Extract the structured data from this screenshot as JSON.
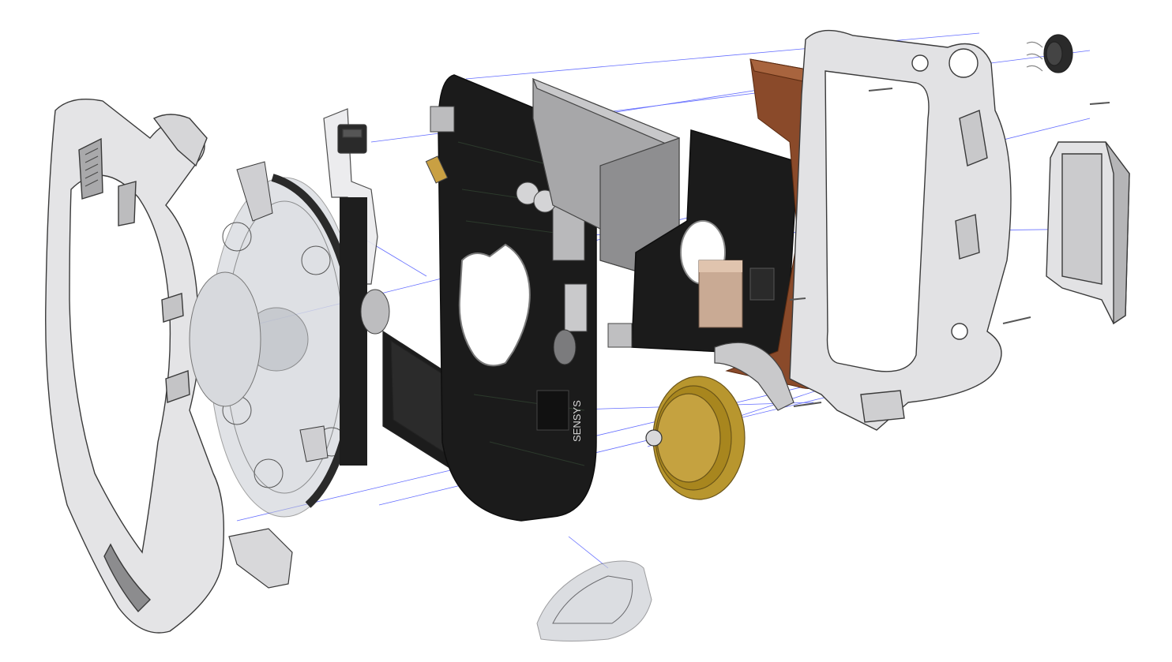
{
  "diagram": {
    "type": "exploded-assembly",
    "background": "#ffffff",
    "colors": {
      "assembly_line": "#2f3cff",
      "housing_fill": "#e4e4e6",
      "housing_edge": "#3a3a3a",
      "pcb": "#1b1b1b",
      "pcb_trace": "#2c3a2c",
      "battery": "#9a9a9a",
      "copper_foil": "#8a4a2a",
      "brass_wheel": "#b8962e",
      "transparent_part": "#c8ccd2"
    },
    "pcb_silkscreen": "SENSYS"
  },
  "parts": [
    {
      "name": "front-bezel",
      "icon": "front-bezel-icon"
    },
    {
      "name": "button-bracket",
      "icon": "bracket-icon"
    },
    {
      "name": "lens-disc",
      "icon": "lens-icon"
    },
    {
      "name": "transparent-rotor-cover",
      "icon": "rotor-cover-icon"
    },
    {
      "name": "display-module",
      "icon": "display-icon"
    },
    {
      "name": "main-pcb",
      "icon": "pcb-icon"
    },
    {
      "name": "battery-pack",
      "icon": "battery-icon"
    },
    {
      "name": "secondary-pcb",
      "icon": "pcb-icon"
    },
    {
      "name": "copper-shield",
      "icon": "shield-icon"
    },
    {
      "name": "brass-wheel",
      "icon": "wheel-icon"
    },
    {
      "name": "rear-frame",
      "icon": "frame-icon"
    },
    {
      "name": "side-cover",
      "icon": "cover-icon"
    },
    {
      "name": "crown-button",
      "icon": "crown-icon"
    },
    {
      "name": "clip-piece",
      "icon": "clip-icon"
    },
    {
      "name": "screws",
      "icon": "screw-icon"
    }
  ]
}
